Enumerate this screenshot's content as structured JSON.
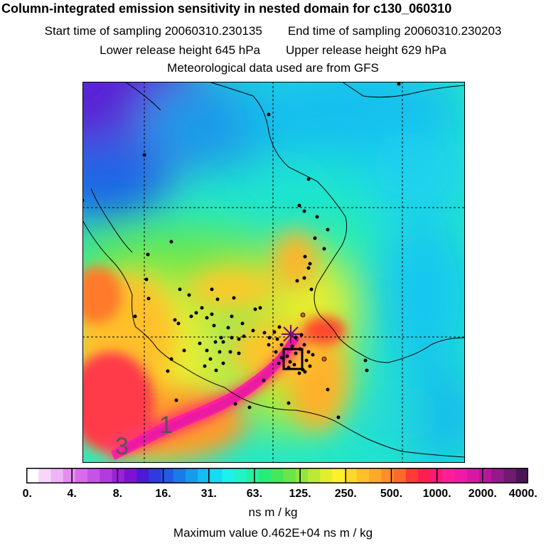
{
  "title": "Column-integrated emission sensitivity in nested domain for c130_060310",
  "header": {
    "start_label": "Start time of sampling 20060310.230135",
    "end_label": "End time of sampling 20060310.230203",
    "lower_label": "Lower release height  645 hPa",
    "upper_label": "Upper release height  629 hPa",
    "met_label": "Meteorological data used are from GFS"
  },
  "map": {
    "corner_numbers": [
      "1",
      "3"
    ]
  },
  "colorbar": {
    "tick_labels": [
      "0.",
      "4.",
      "8.",
      "16.",
      "31.",
      "63.",
      "125.",
      "250.",
      "500.",
      "1000.",
      "2000.",
      "4000."
    ],
    "colors": [
      "#ffffff",
      "#f6d7fa",
      "#eeb5f5",
      "#e48eee",
      "#d86be9",
      "#c653e6",
      "#b43ade",
      "#9a22d8",
      "#7f12d2",
      "#4d18d6",
      "#2f3be0",
      "#2458e6",
      "#1a7ae8",
      "#159ceb",
      "#14bcef",
      "#14dcf2",
      "#1af2ea",
      "#22f2c8",
      "#24f09e",
      "#28ec78",
      "#44e85a",
      "#6ae64a",
      "#92e63e",
      "#bbea34",
      "#e2ee2c",
      "#fff02a",
      "#ffd82a",
      "#ffc02a",
      "#ffa82a",
      "#ff8e2a",
      "#ff6a2a",
      "#ff3a32",
      "#ff1e50",
      "#ff1a78",
      "#ff1e9a",
      "#f01aa6",
      "#d618a4",
      "#b8179a",
      "#931a88",
      "#6e1b70",
      "#4a1656"
    ],
    "units": "ns m / kg"
  },
  "footer": {
    "max_value": "Maximum value  0.462E+04 ns m / kg"
  }
}
